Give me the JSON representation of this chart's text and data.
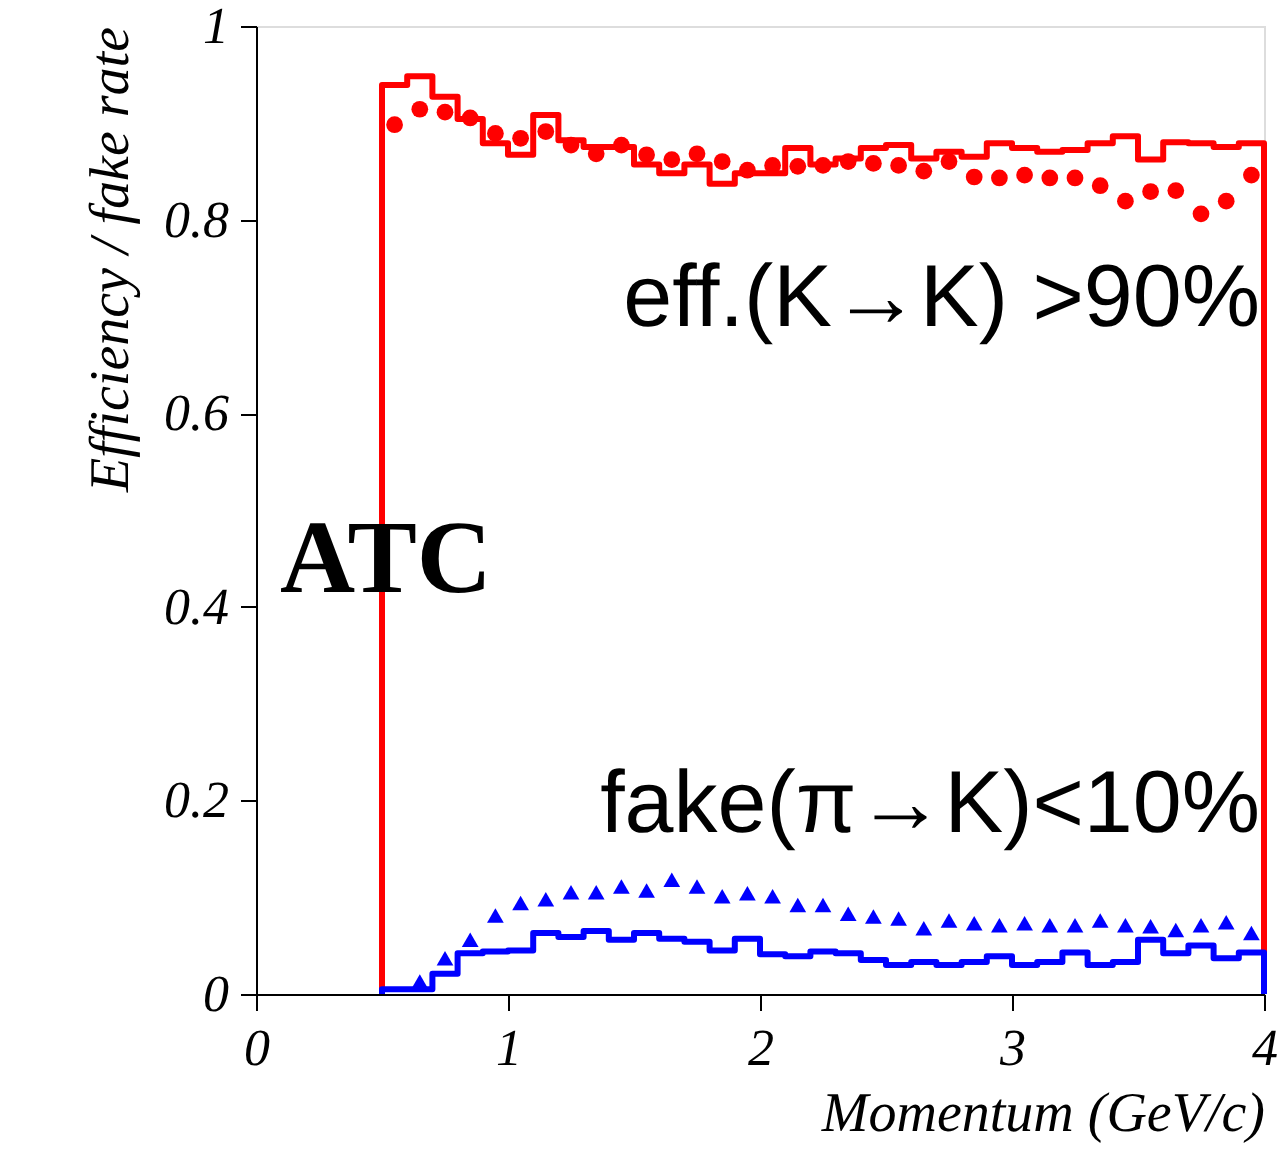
{
  "chart_data": {
    "type": "histogram",
    "xlabel": "Momentum (GeV/c)",
    "ylabel": "Efficiency / fake rate",
    "bins": [
      0.5,
      0.6,
      0.7,
      0.8,
      0.9,
      1.0,
      1.1,
      1.2,
      1.3,
      1.4,
      1.5,
      1.6,
      1.7,
      1.8,
      1.9,
      2.0,
      2.1,
      2.2,
      2.3,
      2.4,
      2.5,
      2.6,
      2.7,
      2.8,
      2.9,
      3.0,
      3.1,
      3.2,
      3.3,
      3.4,
      3.5,
      3.6,
      3.7,
      3.8,
      3.9,
      4.0
    ],
    "series": [
      {
        "color": "#ff0000",
        "values": [
          0.939,
          0.948,
          0.927,
          0.904,
          0.879,
          0.867,
          0.908,
          0.882,
          0.875,
          0.875,
          0.857,
          0.848,
          0.857,
          0.837,
          0.848,
          0.848,
          0.874,
          0.857,
          0.863,
          0.874,
          0.877,
          0.863,
          0.87,
          0.865,
          0.879,
          0.874,
          0.87,
          0.872,
          0.879,
          0.886,
          0.862,
          0.88,
          0.879,
          0.875,
          0.879
        ]
      },
      {
        "type": "scatter",
        "color": "#ff0000",
        "marker": "circle",
        "x": [
          0.55,
          0.65,
          0.75,
          0.85,
          0.95,
          1.05,
          1.15,
          1.25,
          1.35,
          1.45,
          1.55,
          1.65,
          1.75,
          1.85,
          1.95,
          2.05,
          2.15,
          2.25,
          2.35,
          2.45,
          2.55,
          2.65,
          2.75,
          2.85,
          2.95,
          3.05,
          3.15,
          3.25,
          3.35,
          3.45,
          3.55,
          3.65,
          3.75,
          3.85,
          3.95
        ],
        "values": [
          0.898,
          0.914,
          0.911,
          0.905,
          0.889,
          0.884,
          0.891,
          0.877,
          0.868,
          0.877,
          0.867,
          0.862,
          0.868,
          0.86,
          0.851,
          0.856,
          0.855,
          0.856,
          0.86,
          0.858,
          0.856,
          0.85,
          0.86,
          0.844,
          0.843,
          0.846,
          0.843,
          0.843,
          0.835,
          0.819,
          0.829,
          0.83,
          0.806,
          0.819,
          0.846
        ]
      },
      {
        "color": "#0000ff",
        "values": [
          0.005,
          0.005,
          0.021,
          0.042,
          0.044,
          0.045,
          0.063,
          0.059,
          0.065,
          0.056,
          0.063,
          0.057,
          0.054,
          0.045,
          0.057,
          0.041,
          0.039,
          0.044,
          0.042,
          0.035,
          0.03,
          0.033,
          0.03,
          0.033,
          0.039,
          0.03,
          0.033,
          0.043,
          0.03,
          0.033,
          0.056,
          0.042,
          0.05,
          0.037,
          0.043
        ]
      },
      {
        "type": "scatter",
        "color": "#0000ff",
        "marker": "triangle",
        "x": [
          0.65,
          0.75,
          0.85,
          0.95,
          1.05,
          1.15,
          1.25,
          1.35,
          1.45,
          1.55,
          1.65,
          1.75,
          1.85,
          1.95,
          2.05,
          2.15,
          2.25,
          2.35,
          2.45,
          2.55,
          2.65,
          2.75,
          2.85,
          2.95,
          3.05,
          3.15,
          3.25,
          3.35,
          3.45,
          3.55,
          3.65,
          3.75,
          3.85,
          3.95
        ],
        "values": [
          0.013,
          0.037,
          0.056,
          0.081,
          0.094,
          0.098,
          0.105,
          0.105,
          0.111,
          0.107,
          0.118,
          0.111,
          0.101,
          0.104,
          0.101,
          0.092,
          0.092,
          0.083,
          0.08,
          0.078,
          0.068,
          0.076,
          0.073,
          0.071,
          0.073,
          0.071,
          0.071,
          0.076,
          0.071,
          0.07,
          0.066,
          0.071,
          0.074,
          0.063
        ]
      }
    ],
    "annotations": [
      "eff.(K→K) >90%",
      "ATC",
      "fake(π→K)<10%"
    ],
    "xlim": [
      0,
      4
    ],
    "xticks": [
      0,
      1,
      2,
      3,
      4
    ],
    "ylim": [
      0,
      1
    ],
    "yticks": [
      0,
      0.2,
      0.4,
      0.6,
      0.8,
      1
    ],
    "grid": false
  }
}
